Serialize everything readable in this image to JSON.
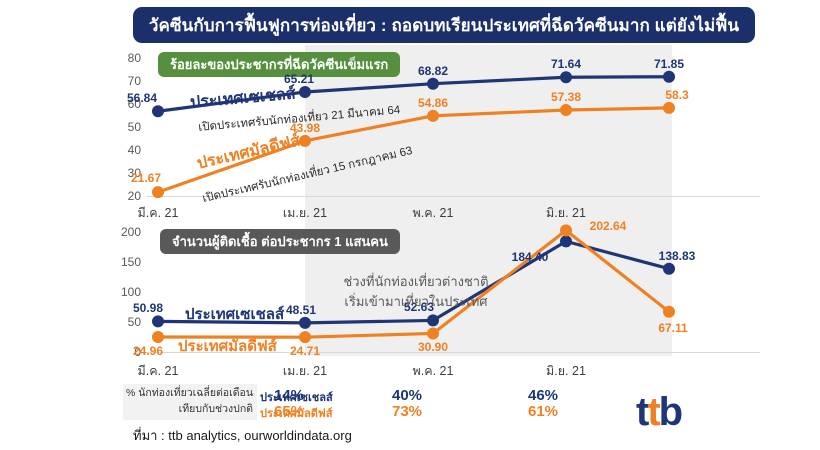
{
  "title": "วัคซีนกับการฟื้นฟูการท่องเที่ยว : ถอดบทเรียนประเทศที่ฉีดวัคซีนมาก แต่ยังไม่ฟื้น",
  "colors": {
    "navy": "#1F3575",
    "orange": "#F08122",
    "title_bg": "#1B2F6B",
    "badge1_bg": "#568F3E",
    "badge2_bg": "#595959",
    "band": "#EFEFEF",
    "axis_line": "#D8D8D8"
  },
  "chart_data": [
    {
      "type": "line",
      "title": "ร้อยละของประชากรที่ฉีดวัคซีนเข็มแรก",
      "categories": [
        "มี.ค. 21",
        "เม.ย. 21",
        "พ.ค. 21",
        "มิ.ย. 21",
        ""
      ],
      "yticks": [
        20,
        30,
        40,
        50,
        60,
        70,
        80
      ],
      "ylim": [
        20,
        80
      ],
      "grid": false,
      "legend_position": "inline-labels",
      "shaded_region": "from 2nd data point to last data point",
      "series": [
        {
          "name": "ประเทศเซเชลส์",
          "subtitle": "เปิดประเทศรับนักท่องเที่ยว 21 มีนาคม 64",
          "color": "#1F3575",
          "values": [
            56.84,
            65.21,
            68.82,
            71.64,
            71.85
          ],
          "labels": [
            "56.84",
            "65.21",
            "68.82",
            "71.64",
            "71.85"
          ]
        },
        {
          "name": "ประเทศมัลดีฟส์",
          "subtitle": "เปิดประเทศรับนักท่องเที่ยว 15 กรกฎาคม 63",
          "color": "#F08122",
          "values": [
            21.67,
            43.98,
            54.86,
            57.38,
            58.3
          ],
          "labels": [
            "21.67",
            "43.98",
            "54.86",
            "57.38",
            "58.3"
          ]
        }
      ]
    },
    {
      "type": "line",
      "title": "จำนวนผู้ติดเชื้อ ต่อประชากร 1 แสนคน",
      "categories": [
        "มี.ค. 21",
        "เม.ย. 21",
        "พ.ค. 21",
        "มิ.ย. 21",
        ""
      ],
      "yticks": [
        0,
        50,
        100,
        150,
        200
      ],
      "ylim": [
        0,
        200
      ],
      "grid": false,
      "annotation": [
        "ช่วงที่นักท่องเที่ยวต่างชาติ",
        "เริ่มเข้ามาเที่ยวในประเทศ"
      ],
      "series": [
        {
          "name": "ประเทศเซเชลส์",
          "color": "#1F3575",
          "values": [
            50.98,
            48.51,
            52.63,
            184.4,
            138.83
          ],
          "labels": [
            "50.98",
            "48.51",
            "52.63",
            "184.40",
            "138.83"
          ]
        },
        {
          "name": "ประเทศมัลดีฟส์",
          "color": "#F08122",
          "values": [
            24.96,
            24.71,
            30.9,
            202.64,
            67.11
          ],
          "labels": [
            "24.96",
            "24.71",
            "30.90",
            "202.64",
            "67.11"
          ]
        }
      ]
    }
  ],
  "table": {
    "header_line1": "% นักท่องเที่ยวเฉลี่ยต่อเดือน",
    "header_line2": "เทียบกับช่วงปกติ",
    "columns": [
      "เม.ย. 21",
      "พ.ค. 21",
      "มิ.ย. 21"
    ],
    "rows": [
      {
        "label": "ประเทศเซเชลส์",
        "color": "#1F3575",
        "values": [
          "14%",
          "40%",
          "46%"
        ]
      },
      {
        "label": "ประเทศมัลดีฟส์",
        "color": "#F08122",
        "values": [
          "65%",
          "73%",
          "61%"
        ]
      }
    ]
  },
  "footer": {
    "source": "ที่มา : ttb analytics, ourworldindata.org"
  },
  "logo": {
    "text": "ttb",
    "letters": [
      {
        "ch": "t",
        "color": "#1F3575"
      },
      {
        "ch": "t",
        "color": "#F08122"
      },
      {
        "ch": "b",
        "color": "#1F3575"
      }
    ]
  }
}
